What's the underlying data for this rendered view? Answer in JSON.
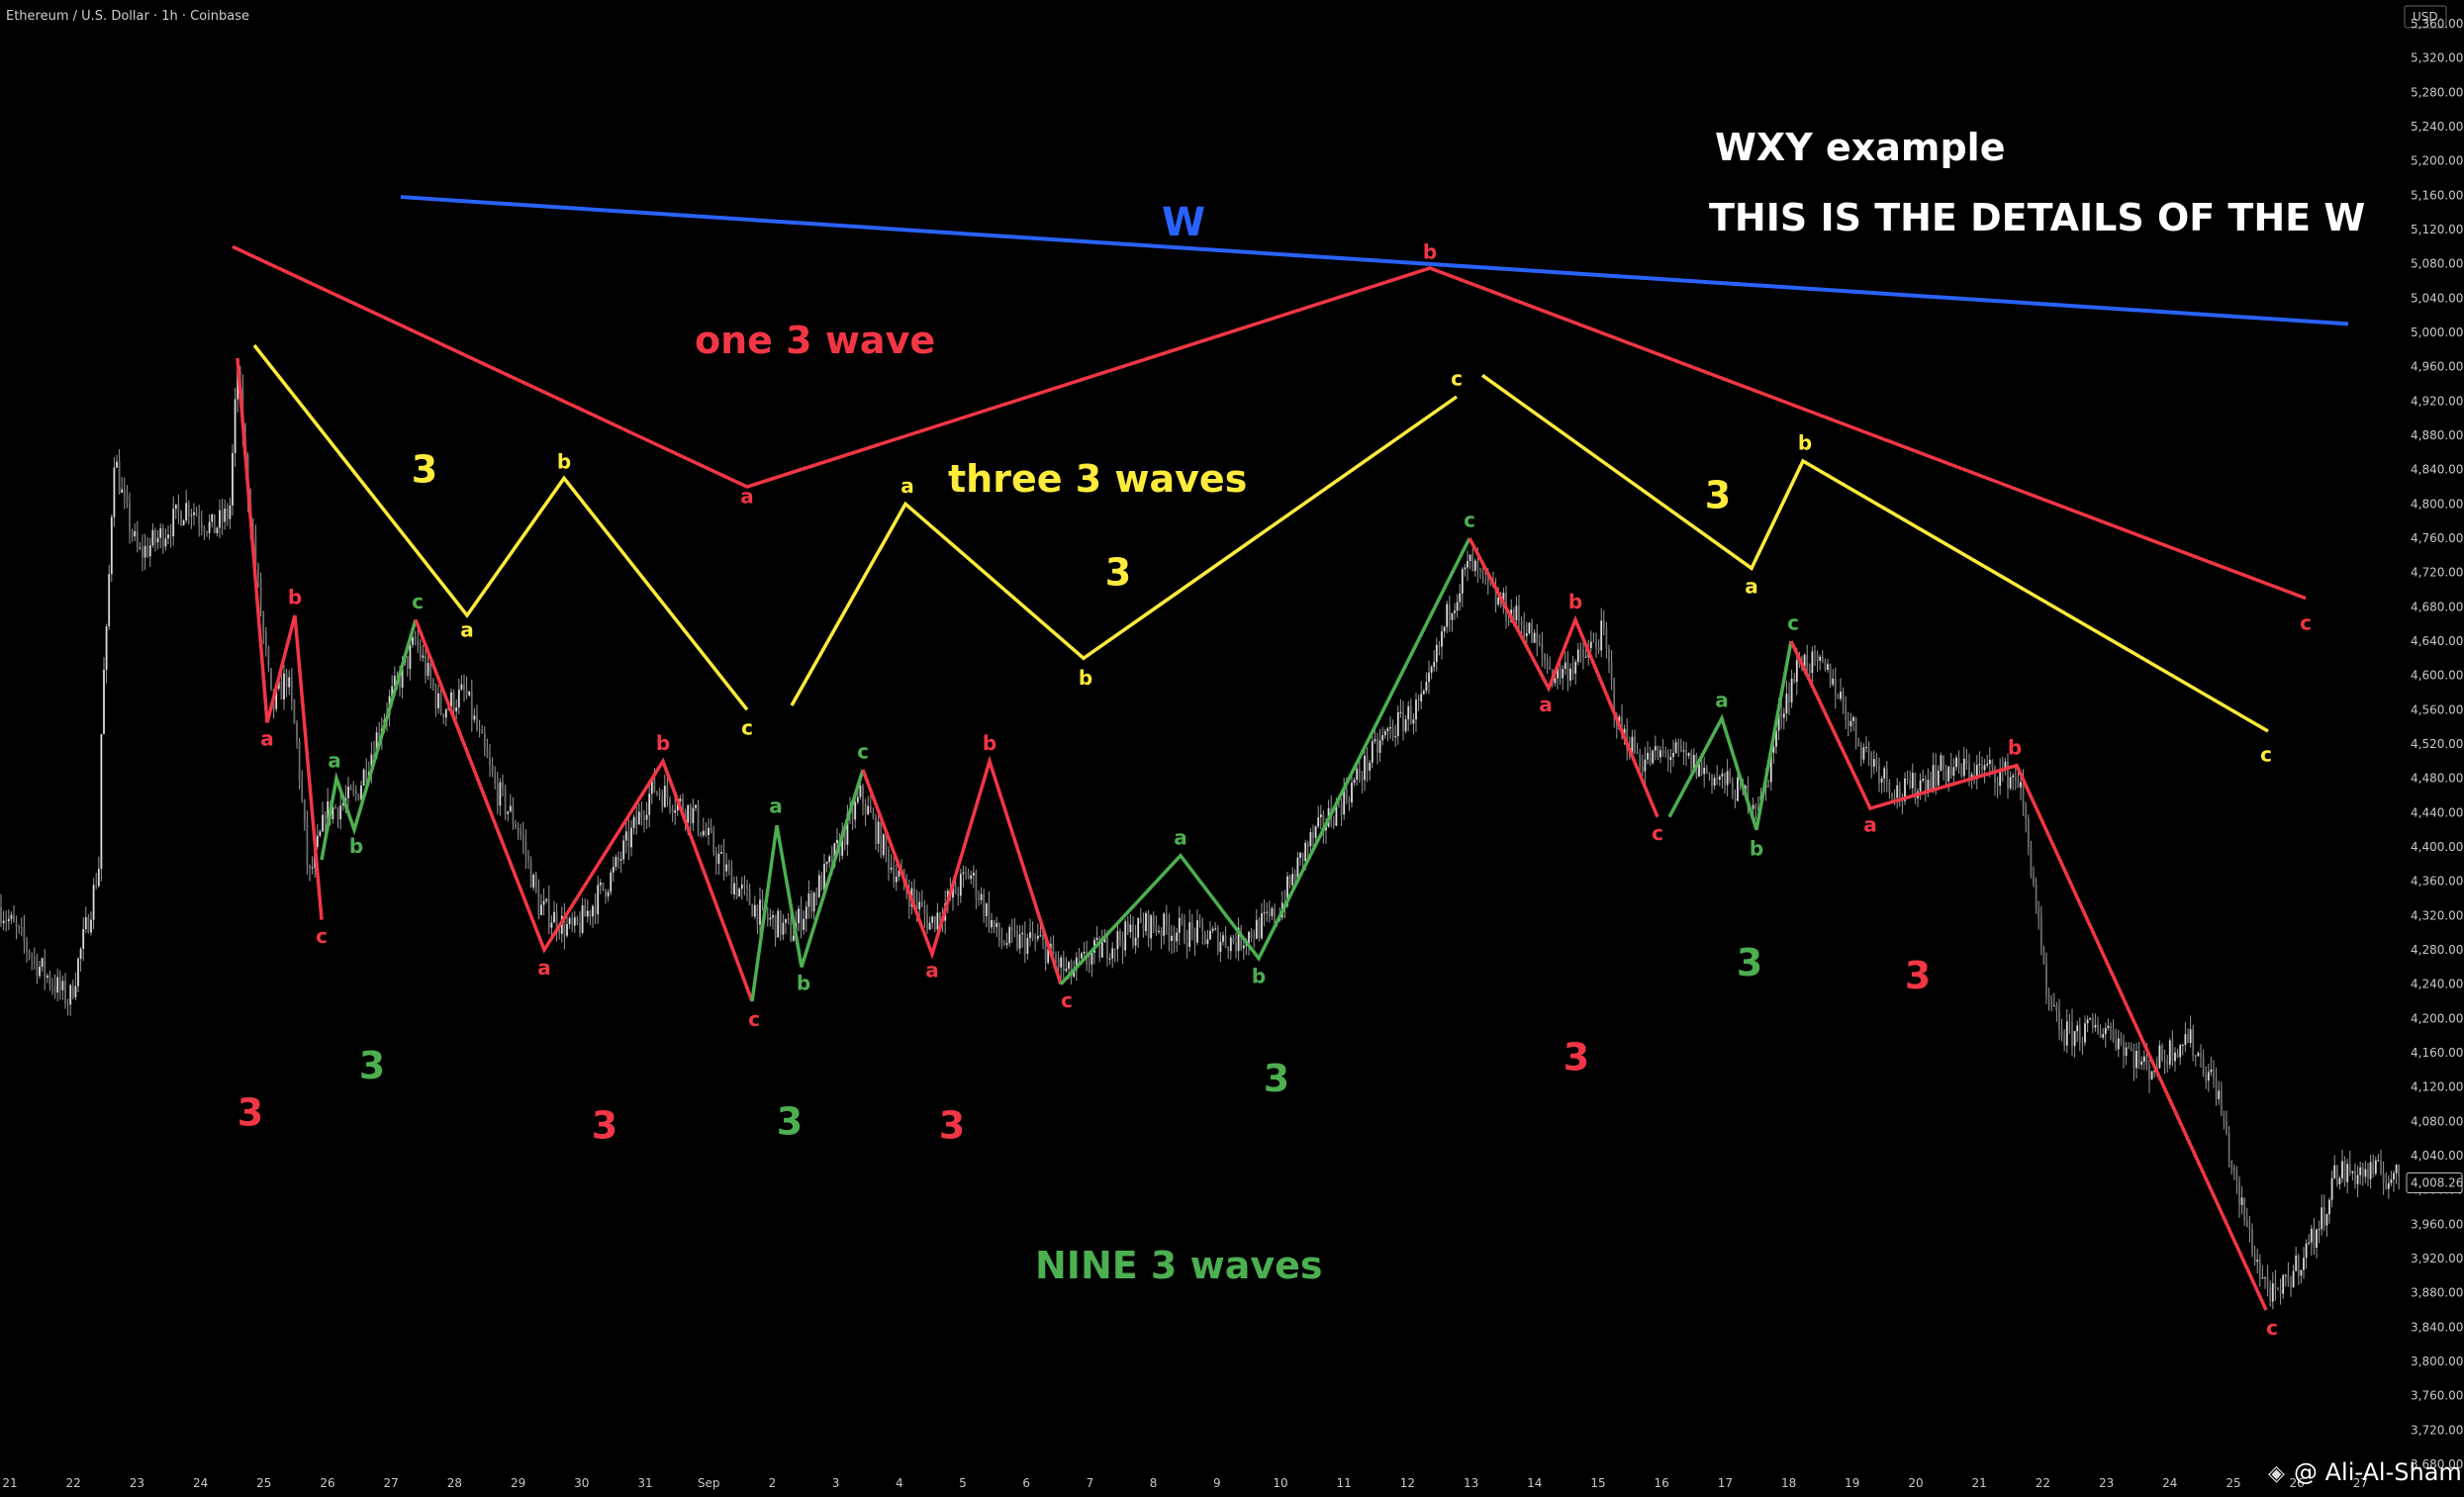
{
  "header": {
    "symbol": "Ethereum / U.S. Dollar · 1h · Coinbase",
    "currency": "USD"
  },
  "watermark": "@ Ali-Al-Shami",
  "colors": {
    "red": "#f23645",
    "yellow": "#ffeb3b",
    "green": "#4caf50",
    "blue": "#2962ff",
    "white": "#ffffff",
    "candle": "#9a9a9a"
  },
  "chart_data": {
    "type": "line",
    "y_axis": {
      "range": [
        3680,
        5400
      ],
      "ticks": [
        "5,360.00",
        "5,320.00",
        "5,280.00",
        "5,240.00",
        "5,200.00",
        "5,160.00",
        "5,120.00",
        "5,080.00",
        "5,040.00",
        "5,000.00",
        "4,960.00",
        "4,920.00",
        "4,880.00",
        "4,840.00",
        "4,800.00",
        "4,760.00",
        "4,720.00",
        "4,680.00",
        "4,640.00",
        "4,600.00",
        "4,560.00",
        "4,520.00",
        "4,480.00",
        "4,440.00",
        "4,400.00",
        "4,360.00",
        "4,320.00",
        "4,280.00",
        "4,240.00",
        "4,200.00",
        "4,160.00",
        "4,120.00",
        "4,080.00",
        "4,040.00",
        "4,000.00",
        "3,960.00",
        "3,920.00",
        "3,880.00",
        "3,840.00",
        "3,800.00",
        "3,760.00",
        "3,720.00",
        "3,680.00"
      ],
      "last_price": "4,008.26"
    },
    "x_axis": {
      "ticks": [
        "21",
        "22",
        "23",
        "24",
        "25",
        "26",
        "27",
        "28",
        "29",
        "30",
        "31",
        "Sep",
        "2",
        "3",
        "4",
        "5",
        "6",
        "7",
        "8",
        "9",
        "10",
        "11",
        "12",
        "13",
        "14",
        "15",
        "16",
        "17",
        "18",
        "19",
        "20",
        "21",
        "22",
        "23",
        "24",
        "25",
        "26",
        "27"
      ]
    },
    "annotations": {
      "title_1": "WXY example",
      "title_2": "THIS IS THE DETAILS OF THE W",
      "w_label": "W",
      "red_big_label": "one 3 wave",
      "yellow_label": "three 3 waves",
      "green_label": "NINE 3 waves"
    },
    "series": [
      {
        "color": "blue",
        "points": [
          [
            405,
            5158
          ],
          [
            2373,
            5010
          ]
        ],
        "labels": []
      },
      {
        "color": "red",
        "points": [
          [
            235,
            5100
          ],
          [
            755,
            4820
          ],
          [
            1445,
            5075
          ],
          [
            2330,
            4690
          ]
        ],
        "labels": [
          {
            "text": "a",
            "x": 755,
            "y": 4808
          },
          {
            "text": "b",
            "x": 1445,
            "y": 5093
          },
          {
            "text": "c",
            "x": 2330,
            "y": 4660
          }
        ]
      },
      {
        "color": "yellow",
        "points": [
          [
            257,
            4985
          ],
          [
            472,
            4670
          ],
          [
            570,
            4830
          ],
          [
            755,
            4560
          ]
        ],
        "labels": [
          {
            "text": "a",
            "x": 472,
            "y": 4652
          },
          {
            "text": "b",
            "x": 570,
            "y": 4848
          },
          {
            "text": "c",
            "x": 755,
            "y": 4538
          }
        ]
      },
      {
        "color": "yellow",
        "points": [
          [
            800,
            4565
          ],
          [
            915,
            4800
          ],
          [
            1095,
            4620
          ],
          [
            1472,
            4925
          ]
        ],
        "labels": [
          {
            "text": "a",
            "x": 917,
            "y": 4820
          },
          {
            "text": "b",
            "x": 1097,
            "y": 4596
          },
          {
            "text": "c",
            "x": 1472,
            "y": 4945
          }
        ]
      },
      {
        "color": "yellow",
        "points": [
          [
            1498,
            4950
          ],
          [
            1770,
            4725
          ],
          [
            1822,
            4850
          ],
          [
            2292,
            4535
          ]
        ],
        "labels": [
          {
            "text": "a",
            "x": 1770,
            "y": 4703
          },
          {
            "text": "b",
            "x": 1824,
            "y": 4870
          },
          {
            "text": "c",
            "x": 2290,
            "y": 4507
          }
        ]
      },
      {
        "color": "red",
        "points": [
          [
            240,
            4970
          ],
          [
            270,
            4545
          ],
          [
            298,
            4670
          ],
          [
            325,
            4315
          ]
        ],
        "labels": [
          {
            "text": "a",
            "x": 270,
            "y": 4525
          },
          {
            "text": "b",
            "x": 298,
            "y": 4690
          },
          {
            "text": "c",
            "x": 325,
            "y": 4295
          }
        ]
      },
      {
        "color": "green",
        "points": [
          [
            325,
            4385
          ],
          [
            340,
            4480
          ],
          [
            358,
            4420
          ],
          [
            420,
            4665
          ]
        ],
        "labels": [
          {
            "text": "a",
            "x": 338,
            "y": 4500
          },
          {
            "text": "b",
            "x": 360,
            "y": 4400
          },
          {
            "text": "c",
            "x": 422,
            "y": 4685
          }
        ]
      },
      {
        "color": "red",
        "points": [
          [
            420,
            4665
          ],
          [
            550,
            4280
          ],
          [
            670,
            4500
          ],
          [
            760,
            4220
          ]
        ],
        "labels": [
          {
            "text": "a",
            "x": 550,
            "y": 4258
          },
          {
            "text": "b",
            "x": 670,
            "y": 4520
          },
          {
            "text": "c",
            "x": 762,
            "y": 4198
          }
        ]
      },
      {
        "color": "green",
        "points": [
          [
            760,
            4220
          ],
          [
            785,
            4425
          ],
          [
            810,
            4260
          ],
          [
            872,
            4490
          ]
        ],
        "labels": [
          {
            "text": "a",
            "x": 784,
            "y": 4447
          },
          {
            "text": "b",
            "x": 812,
            "y": 4240
          },
          {
            "text": "c",
            "x": 872,
            "y": 4510
          }
        ]
      },
      {
        "color": "red",
        "points": [
          [
            872,
            4490
          ],
          [
            942,
            4275
          ],
          [
            1000,
            4500
          ],
          [
            1072,
            4240
          ]
        ],
        "labels": [
          {
            "text": "a",
            "x": 942,
            "y": 4255
          },
          {
            "text": "b",
            "x": 1000,
            "y": 4520
          },
          {
            "text": "c",
            "x": 1078,
            "y": 4220
          }
        ]
      },
      {
        "color": "green",
        "points": [
          [
            1072,
            4240
          ],
          [
            1193,
            4390
          ],
          [
            1272,
            4270
          ],
          [
            1485,
            4760
          ]
        ],
        "labels": [
          {
            "text": "a",
            "x": 1193,
            "y": 4410
          },
          {
            "text": "b",
            "x": 1272,
            "y": 4248
          },
          {
            "text": "c",
            "x": 1485,
            "y": 4780
          }
        ]
      },
      {
        "color": "red",
        "points": [
          [
            1485,
            4760
          ],
          [
            1565,
            4585
          ],
          [
            1592,
            4665
          ],
          [
            1675,
            4435
          ]
        ],
        "labels": [
          {
            "text": "a",
            "x": 1562,
            "y": 4565
          },
          {
            "text": "b",
            "x": 1592,
            "y": 4685
          },
          {
            "text": "c",
            "x": 1675,
            "y": 4415
          }
        ]
      },
      {
        "color": "green",
        "points": [
          [
            1687,
            4435
          ],
          [
            1740,
            4550
          ],
          [
            1775,
            4420
          ],
          [
            1810,
            4640
          ]
        ],
        "labels": [
          {
            "text": "a",
            "x": 1740,
            "y": 4570
          },
          {
            "text": "b",
            "x": 1775,
            "y": 4397
          },
          {
            "text": "c",
            "x": 1812,
            "y": 4660
          }
        ]
      },
      {
        "color": "red",
        "points": [
          [
            1810,
            4640
          ],
          [
            1890,
            4445
          ],
          [
            2038,
            4495
          ],
          [
            2290,
            3860
          ]
        ],
        "labels": [
          {
            "text": "a",
            "x": 1890,
            "y": 4425
          },
          {
            "text": "b",
            "x": 2036,
            "y": 4515
          },
          {
            "text": "c",
            "x": 2296,
            "y": 3838
          }
        ]
      }
    ],
    "threes": [
      {
        "color": "red",
        "x": 253,
        "y": 4090
      },
      {
        "color": "green",
        "x": 376,
        "y": 4145
      },
      {
        "color": "red",
        "x": 611,
        "y": 4075
      },
      {
        "color": "green",
        "x": 798,
        "y": 4080
      },
      {
        "color": "red",
        "x": 962,
        "y": 4075
      },
      {
        "color": "green",
        "x": 1290,
        "y": 4130
      },
      {
        "color": "red",
        "x": 1593,
        "y": 4155
      },
      {
        "color": "green",
        "x": 1768,
        "y": 4265
      },
      {
        "color": "red",
        "x": 1938,
        "y": 4250
      },
      {
        "color": "yellow",
        "x": 429,
        "y": 4840
      },
      {
        "color": "yellow",
        "x": 1130,
        "y": 4720
      },
      {
        "color": "yellow",
        "x": 1736,
        "y": 4810
      }
    ],
    "price_path": [
      [
        0,
        4330
      ],
      [
        40,
        4260
      ],
      [
        70,
        4220
      ],
      [
        90,
        4320
      ],
      [
        100,
        4380
      ],
      [
        103,
        4570
      ],
      [
        108,
        4650
      ],
      [
        115,
        4860
      ],
      [
        125,
        4800
      ],
      [
        140,
        4740
      ],
      [
        160,
        4760
      ],
      [
        190,
        4800
      ],
      [
        215,
        4770
      ],
      [
        232,
        4790
      ],
      [
        240,
        4960
      ],
      [
        250,
        4820
      ],
      [
        262,
        4690
      ],
      [
        275,
        4560
      ],
      [
        290,
        4600
      ],
      [
        300,
        4520
      ],
      [
        312,
        4360
      ],
      [
        330,
        4440
      ],
      [
        360,
        4460
      ],
      [
        390,
        4560
      ],
      [
        420,
        4640
      ],
      [
        445,
        4560
      ],
      [
        470,
        4580
      ],
      [
        500,
        4470
      ],
      [
        525,
        4420
      ],
      [
        545,
        4330
      ],
      [
        580,
        4300
      ],
      [
        620,
        4370
      ],
      [
        660,
        4470
      ],
      [
        700,
        4440
      ],
      [
        740,
        4360
      ],
      [
        770,
        4320
      ],
      [
        800,
        4300
      ],
      [
        840,
        4380
      ],
      [
        870,
        4460
      ],
      [
        900,
        4380
      ],
      [
        940,
        4310
      ],
      [
        980,
        4370
      ],
      [
        1010,
        4290
      ],
      [
        1050,
        4290
      ],
      [
        1080,
        4250
      ],
      [
        1110,
        4280
      ],
      [
        1160,
        4310
      ],
      [
        1200,
        4300
      ],
      [
        1250,
        4290
      ],
      [
        1290,
        4320
      ],
      [
        1320,
        4400
      ],
      [
        1360,
        4460
      ],
      [
        1400,
        4530
      ],
      [
        1440,
        4570
      ],
      [
        1465,
        4680
      ],
      [
        1485,
        4730
      ],
      [
        1510,
        4690
      ],
      [
        1540,
        4660
      ],
      [
        1570,
        4600
      ],
      [
        1600,
        4620
      ],
      [
        1620,
        4650
      ],
      [
        1635,
        4540
      ],
      [
        1660,
        4500
      ],
      [
        1690,
        4510
      ],
      [
        1720,
        4490
      ],
      [
        1750,
        4470
      ],
      [
        1780,
        4450
      ],
      [
        1800,
        4560
      ],
      [
        1820,
        4620
      ],
      [
        1850,
        4600
      ],
      [
        1880,
        4520
      ],
      [
        1920,
        4460
      ],
      [
        1960,
        4490
      ],
      [
        2010,
        4490
      ],
      [
        2040,
        4480
      ],
      [
        2055,
        4360
      ],
      [
        2068,
        4220
      ],
      [
        2085,
        4180
      ],
      [
        2130,
        4190
      ],
      [
        2170,
        4140
      ],
      [
        2210,
        4180
      ],
      [
        2240,
        4120
      ],
      [
        2260,
        4000
      ],
      [
        2285,
        3900
      ],
      [
        2300,
        3870
      ],
      [
        2325,
        3920
      ],
      [
        2345,
        3960
      ],
      [
        2360,
        4020
      ],
      [
        2400,
        4020
      ],
      [
        2430,
        4010
      ]
    ]
  }
}
